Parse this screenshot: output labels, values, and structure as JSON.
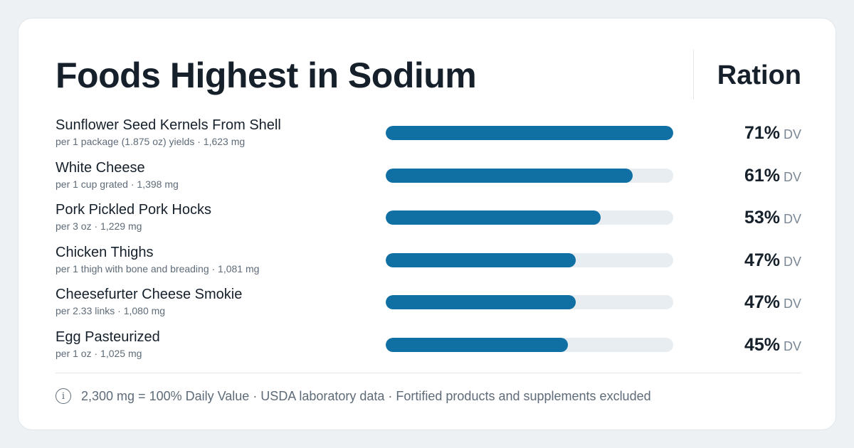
{
  "header": {
    "title": "Foods Highest in Sodium",
    "brand": "Ration"
  },
  "colors": {
    "bar": "#106fa3",
    "track": "#e8edf1",
    "text": "#16202b",
    "muted": "#5e6b78"
  },
  "chart_data": {
    "type": "bar",
    "orientation": "horizontal",
    "title": "Foods Highest in Sodium",
    "unit": "% DV",
    "xlim": [
      0,
      71
    ],
    "categories": [
      "Sunflower Seed Kernels From Shell",
      "White Cheese",
      "Pork Pickled Pork Hocks",
      "Chicken Thighs",
      "Cheesefurter Cheese Smokie",
      "Egg Pasteurized"
    ],
    "values": [
      71,
      61,
      53,
      47,
      47,
      45
    ],
    "rows": [
      {
        "name": "Sunflower Seed Kernels From Shell",
        "detail": "per 1 package (1.875 oz) yields · 1,623 mg",
        "dv": 71,
        "dv_label": "71%",
        "unit_label": "DV"
      },
      {
        "name": "White Cheese",
        "detail": "per 1 cup grated · 1,398 mg",
        "dv": 61,
        "dv_label": "61%",
        "unit_label": "DV"
      },
      {
        "name": "Pork Pickled Pork Hocks",
        "detail": "per 3 oz · 1,229 mg",
        "dv": 53,
        "dv_label": "53%",
        "unit_label": "DV"
      },
      {
        "name": "Chicken Thighs",
        "detail": "per 1 thigh with bone and breading · 1,081 mg",
        "dv": 47,
        "dv_label": "47%",
        "unit_label": "DV"
      },
      {
        "name": "Cheesefurter Cheese Smokie",
        "detail": "per 2.33 links · 1,080 mg",
        "dv": 47,
        "dv_label": "47%",
        "unit_label": "DV"
      },
      {
        "name": "Egg Pasteurized",
        "detail": "per 1 oz · 1,025 mg",
        "dv": 45,
        "dv_label": "45%",
        "unit_label": "DV"
      }
    ]
  },
  "footer": {
    "info_icon": "info-icon",
    "info_glyph": "i",
    "note": "2,300 mg = 100% Daily Value · USDA laboratory data · Fortified products and supplements excluded"
  }
}
